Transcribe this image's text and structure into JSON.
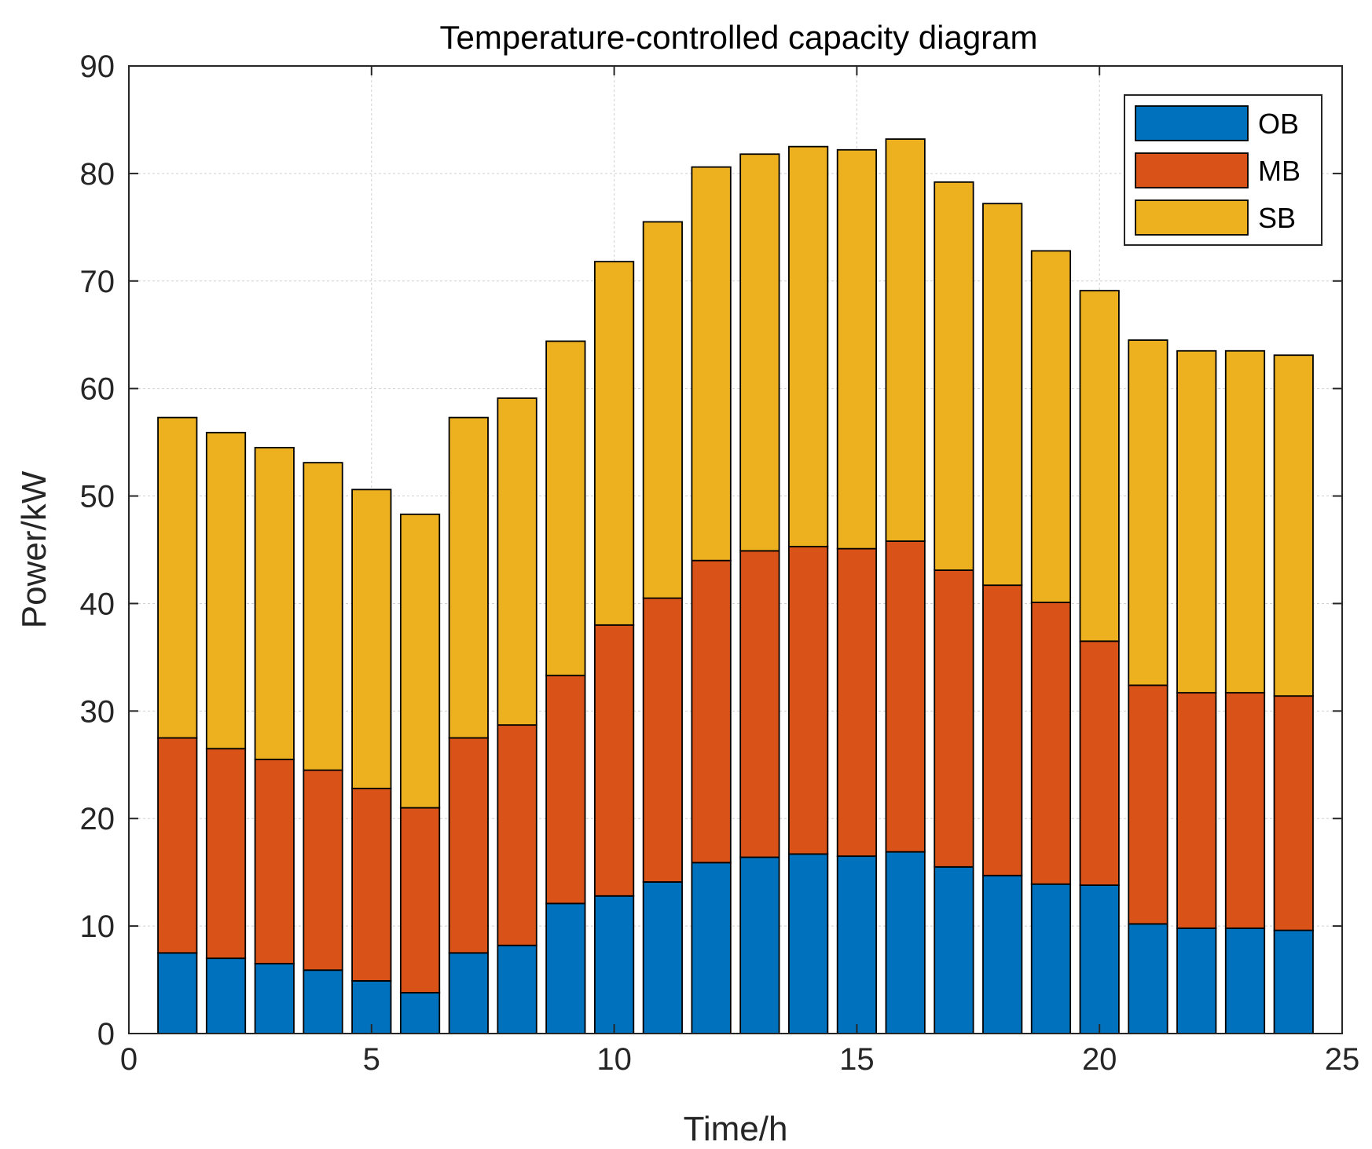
{
  "chart_data": {
    "type": "bar",
    "stacked": true,
    "title": "Temperature-controlled capacity diagram",
    "xlabel": "Time/h",
    "ylabel": "Power/kW",
    "xlim": [
      0,
      25
    ],
    "ylim": [
      0,
      90
    ],
    "grid": true,
    "legend_position": "top-right",
    "x_ticks": [
      0,
      5,
      10,
      15,
      20,
      25
    ],
    "y_ticks": [
      0,
      10,
      20,
      30,
      40,
      50,
      60,
      70,
      80,
      90
    ],
    "x_tick_labels": [
      "0",
      "5",
      "10",
      "15",
      "20",
      "25"
    ],
    "y_tick_labels": [
      "0",
      "10",
      "20",
      "30",
      "40",
      "50",
      "60",
      "70",
      "80",
      "90"
    ],
    "categories": [
      1,
      2,
      3,
      4,
      5,
      6,
      7,
      8,
      9,
      10,
      11,
      12,
      13,
      14,
      15,
      16,
      17,
      18,
      19,
      20,
      21,
      22,
      23,
      24
    ],
    "series": [
      {
        "name": "OB",
        "color": "#0072BD",
        "values": [
          7.5,
          7.0,
          6.5,
          5.9,
          4.9,
          3.8,
          7.5,
          8.2,
          12.1,
          12.8,
          14.1,
          15.9,
          16.4,
          16.7,
          16.5,
          16.9,
          15.5,
          14.7,
          13.9,
          13.8,
          10.2,
          9.8,
          9.8,
          9.6
        ]
      },
      {
        "name": "MB",
        "color": "#D95319",
        "values": [
          20.0,
          19.5,
          19.0,
          18.6,
          17.9,
          17.2,
          20.0,
          20.5,
          21.2,
          25.2,
          26.4,
          28.1,
          28.5,
          28.6,
          28.6,
          28.9,
          27.6,
          27.0,
          26.2,
          22.7,
          22.2,
          21.9,
          21.9,
          21.8
        ]
      },
      {
        "name": "SB",
        "color": "#EDB120",
        "values": [
          29.8,
          29.4,
          29.0,
          28.6,
          27.8,
          27.3,
          29.8,
          30.4,
          31.1,
          33.8,
          35.0,
          36.6,
          36.9,
          37.2,
          37.1,
          37.4,
          36.1,
          35.5,
          32.7,
          32.6,
          32.1,
          31.8,
          31.8,
          31.7
        ]
      }
    ]
  }
}
